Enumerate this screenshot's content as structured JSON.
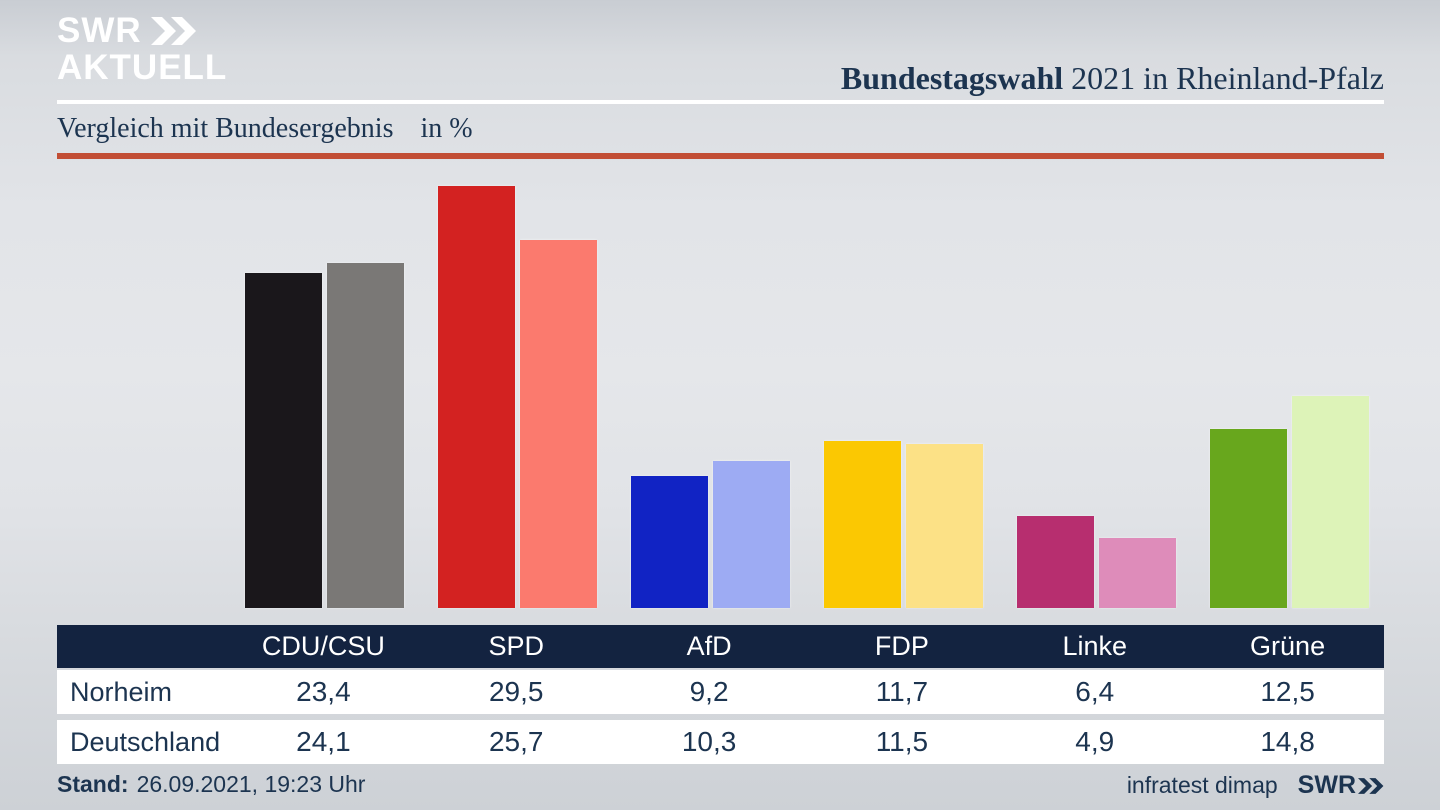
{
  "header": {
    "logo_line1": "SWR",
    "logo_line2": "AKTUELL",
    "title_bold": "Bundestagswahl",
    "title_rest": " 2021 in Rheinland-Pfalz"
  },
  "subtitle": {
    "text": "Vergleich mit Bundesergebnis",
    "unit": "in %"
  },
  "chart_data": {
    "type": "bar",
    "title": "Vergleich mit Bundesergebnis in %",
    "xlabel": "",
    "ylabel": "%",
    "ylim": [
      0,
      30
    ],
    "grid": false,
    "legend_position": "table-rows",
    "categories": [
      "CDU/CSU",
      "SPD",
      "AfD",
      "FDP",
      "Linke",
      "Grüne"
    ],
    "series": [
      {
        "name": "Norheim",
        "values": [
          23.4,
          29.5,
          9.2,
          11.7,
          6.4,
          12.5
        ],
        "colors": [
          "#1a171b",
          "#d32221",
          "#1123c4",
          "#fbc802",
          "#b72e6f",
          "#68a71d"
        ]
      },
      {
        "name": "Deutschland",
        "values": [
          24.1,
          25.7,
          10.3,
          11.5,
          4.9,
          14.8
        ],
        "colors": [
          "#7a7876",
          "#fb7a6e",
          "#9dabf3",
          "#fce186",
          "#de8cba",
          "#ddf3b8"
        ]
      }
    ],
    "value_format": "german-decimal-comma"
  },
  "footer": {
    "stand_label": "Stand:",
    "stand_value": "26.09.2021, 19:23 Uhr",
    "source": "infratest dimap",
    "source_logo": "SWR"
  },
  "colors": {
    "bg_top": "#c9cdd3",
    "bg_mid": "#e5e7ea",
    "bg_bottom": "#cdd1d6",
    "navy": "#1c3450",
    "thead_bg": "#132340",
    "accent": "#c24e35",
    "white": "#ffffff"
  }
}
